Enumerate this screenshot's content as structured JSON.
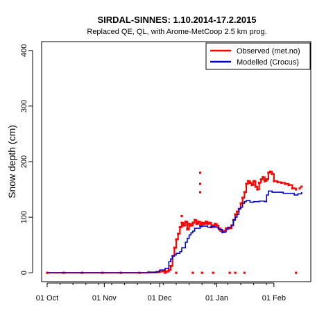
{
  "chart_data": {
    "type": "line",
    "title": "SIRDAL-SINNES: 1.10.2014-17.2.2015",
    "subtitle": "Replaced QE, QL,  with Arome-MetCoop 2.5 km prog.",
    "xlabel": "",
    "ylabel": "Snow depth (cm)",
    "x_type": "date",
    "xlim": [
      "2014-09-28",
      "2015-02-21"
    ],
    "ylim": [
      -16,
      416
    ],
    "x_ticks": [
      {
        "date": "2014-10-01",
        "label": "01 Oct"
      },
      {
        "date": "2014-11-01",
        "label": "01 Nov"
      },
      {
        "date": "2014-12-01",
        "label": "01 Dec"
      },
      {
        "date": "2015-01-01",
        "label": "01 Jan"
      },
      {
        "date": "2015-02-01",
        "label": "01 Feb"
      }
    ],
    "y_ticks": [
      0,
      100,
      200,
      300,
      400
    ],
    "grid": false,
    "legend_position": "top-right",
    "series": [
      {
        "name": "Observed (met.no)",
        "color": "#ff0000",
        "style": "points",
        "points": [
          [
            "2014-10-01",
            0
          ],
          [
            "2014-10-10",
            0
          ],
          [
            "2014-10-20",
            0
          ],
          [
            "2014-10-31",
            0
          ],
          [
            "2014-11-10",
            0
          ],
          [
            "2014-11-20",
            0
          ],
          [
            "2014-11-25",
            1
          ],
          [
            "2014-11-30",
            1
          ],
          [
            "2014-12-01",
            2
          ],
          [
            "2014-12-03",
            3
          ],
          [
            "2014-12-05",
            2
          ],
          [
            "2014-12-06",
            5
          ],
          [
            "2014-12-07",
            12
          ],
          [
            "2014-12-08",
            30
          ],
          [
            "2014-12-09",
            45
          ],
          [
            "2014-12-10",
            60
          ],
          [
            "2014-12-11",
            70
          ],
          [
            "2014-12-12",
            82
          ],
          [
            "2014-12-13",
            90
          ],
          [
            "2014-12-14",
            85
          ],
          [
            "2014-12-15",
            92
          ],
          [
            "2014-12-16",
            78
          ],
          [
            "2014-12-17",
            88
          ],
          [
            "2014-12-18",
            85
          ],
          [
            "2014-12-19",
            90
          ],
          [
            "2014-12-20",
            95
          ],
          [
            "2014-12-21",
            88
          ],
          [
            "2014-12-22",
            92
          ],
          [
            "2014-12-23",
            85
          ],
          [
            "2014-12-24",
            90
          ],
          [
            "2014-12-25",
            88
          ],
          [
            "2014-12-26",
            92
          ],
          [
            "2014-12-27",
            88
          ],
          [
            "2014-12-28",
            90
          ],
          [
            "2014-12-29",
            82
          ],
          [
            "2014-12-30",
            85
          ],
          [
            "2014-12-31",
            88
          ],
          [
            "2015-01-01",
            85
          ],
          [
            "2015-01-02",
            80
          ],
          [
            "2015-01-03",
            76
          ],
          [
            "2015-01-04",
            73
          ],
          [
            "2015-01-05",
            75
          ],
          [
            "2015-01-06",
            80
          ],
          [
            "2015-01-07",
            80
          ],
          [
            "2015-01-08",
            80
          ],
          [
            "2015-01-09",
            85
          ],
          [
            "2015-01-10",
            95
          ],
          [
            "2015-01-11",
            105
          ],
          [
            "2015-01-12",
            110
          ],
          [
            "2015-01-13",
            115
          ],
          [
            "2015-01-14",
            125
          ],
          [
            "2015-01-15",
            135
          ],
          [
            "2015-01-16",
            145
          ],
          [
            "2015-01-17",
            160
          ],
          [
            "2015-01-18",
            165
          ],
          [
            "2015-01-19",
            162
          ],
          [
            "2015-01-20",
            158
          ],
          [
            "2015-01-21",
            165
          ],
          [
            "2015-01-22",
            155
          ],
          [
            "2015-01-23",
            150
          ],
          [
            "2015-01-24",
            162
          ],
          [
            "2015-01-25",
            168
          ],
          [
            "2015-01-26",
            172
          ],
          [
            "2015-01-27",
            165
          ],
          [
            "2015-01-28",
            168
          ],
          [
            "2015-01-29",
            180
          ],
          [
            "2015-01-30",
            182
          ],
          [
            "2015-01-31",
            178
          ],
          [
            "2015-02-01",
            165
          ],
          [
            "2015-02-03",
            163
          ],
          [
            "2015-02-05",
            162
          ],
          [
            "2015-02-07",
            160
          ],
          [
            "2015-02-09",
            158
          ],
          [
            "2015-02-11",
            152
          ],
          [
            "2015-02-13",
            150
          ],
          [
            "2015-02-15",
            152
          ],
          [
            "2015-02-16",
            155
          ],
          [
            "2014-12-04",
            0
          ],
          [
            "2014-12-10",
            0
          ],
          [
            "2014-12-13",
            102
          ],
          [
            "2014-12-19",
            0
          ],
          [
            "2014-12-23",
            180
          ],
          [
            "2014-12-23",
            160
          ],
          [
            "2014-12-23",
            145
          ],
          [
            "2014-12-24",
            0
          ],
          [
            "2014-12-30",
            0
          ],
          [
            "2015-01-08",
            0
          ],
          [
            "2015-01-11",
            0
          ],
          [
            "2015-01-16",
            0
          ],
          [
            "2015-02-13",
            0
          ]
        ]
      },
      {
        "name": "Modelled (Crocus)",
        "color": "#0000cc",
        "style": "line",
        "points": [
          [
            "2014-10-01",
            0
          ],
          [
            "2014-11-28",
            0
          ],
          [
            "2014-11-29",
            2
          ],
          [
            "2014-12-01",
            5
          ],
          [
            "2014-12-03",
            5
          ],
          [
            "2014-12-04",
            8
          ],
          [
            "2014-12-05",
            8
          ],
          [
            "2014-12-06",
            20
          ],
          [
            "2014-12-07",
            25
          ],
          [
            "2014-12-08",
            30
          ],
          [
            "2014-12-09",
            32
          ],
          [
            "2014-12-10",
            35
          ],
          [
            "2014-12-12",
            38
          ],
          [
            "2014-12-13",
            45
          ],
          [
            "2014-12-15",
            55
          ],
          [
            "2014-12-16",
            62
          ],
          [
            "2014-12-17",
            68
          ],
          [
            "2014-12-18",
            72
          ],
          [
            "2014-12-19",
            75
          ],
          [
            "2014-12-20",
            80
          ],
          [
            "2014-12-22",
            80
          ],
          [
            "2014-12-23",
            83
          ],
          [
            "2014-12-24",
            84
          ],
          [
            "2014-12-26",
            84
          ],
          [
            "2014-12-27",
            82
          ],
          [
            "2014-12-29",
            83
          ],
          [
            "2014-12-31",
            82
          ],
          [
            "2015-01-01",
            82
          ],
          [
            "2015-01-02",
            78
          ],
          [
            "2015-01-04",
            73
          ],
          [
            "2015-01-06",
            78
          ],
          [
            "2015-01-07",
            82
          ],
          [
            "2015-01-09",
            86
          ],
          [
            "2015-01-10",
            95
          ],
          [
            "2015-01-11",
            100
          ],
          [
            "2015-01-12",
            105
          ],
          [
            "2015-01-13",
            115
          ],
          [
            "2015-01-14",
            118
          ],
          [
            "2015-01-15",
            125
          ],
          [
            "2015-01-16",
            128
          ],
          [
            "2015-01-17",
            130
          ],
          [
            "2015-01-19",
            127
          ],
          [
            "2015-01-21",
            128
          ],
          [
            "2015-01-24",
            129
          ],
          [
            "2015-01-27",
            128
          ],
          [
            "2015-01-28",
            140
          ],
          [
            "2015-01-29",
            147
          ],
          [
            "2015-01-31",
            145
          ],
          [
            "2015-02-03",
            145
          ],
          [
            "2015-02-06",
            143
          ],
          [
            "2015-02-09",
            143
          ],
          [
            "2015-02-12",
            140
          ],
          [
            "2015-02-14",
            142
          ],
          [
            "2015-02-16",
            145
          ]
        ]
      }
    ]
  }
}
